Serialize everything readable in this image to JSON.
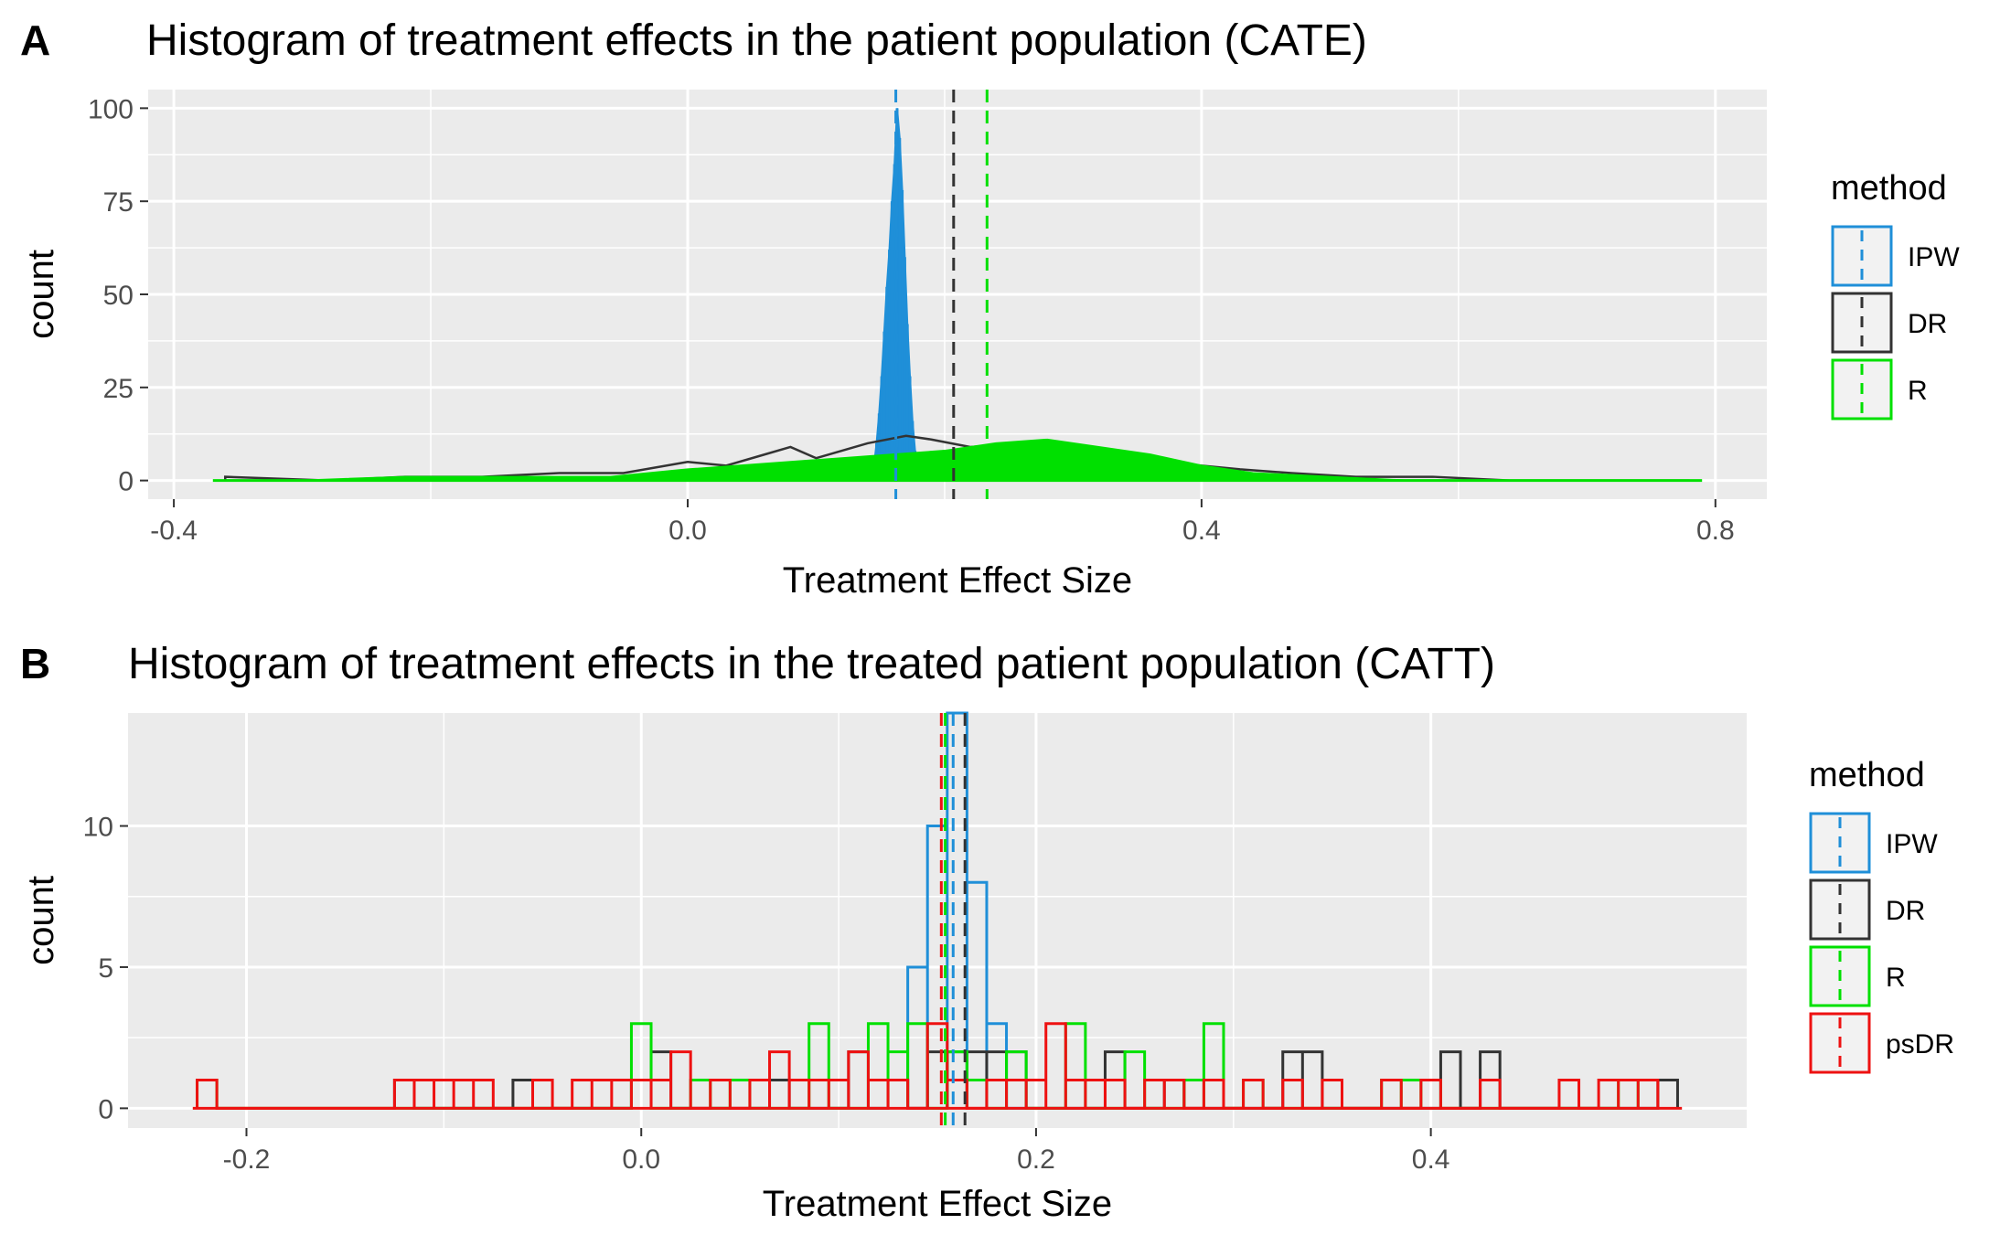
{
  "chart_data": [
    {
      "panel": "A",
      "type": "histogram",
      "title": "Histogram of treatment effects in the patient population (CATE)",
      "xlabel": "Treatment Effect Size",
      "ylabel": "count",
      "xlim": [
        -0.42,
        0.84
      ],
      "ylim": [
        -5,
        105
      ],
      "xticks": [
        -0.4,
        0.0,
        0.4,
        0.8
      ],
      "xtick_labels": [
        "-0.4",
        "0.0",
        "0.4",
        "0.8"
      ],
      "yticks": [
        0,
        25,
        50,
        75,
        100
      ],
      "ytick_labels": [
        "0",
        "25",
        "50",
        "75",
        "100"
      ],
      "grid": true,
      "legend": {
        "title": "method",
        "position": "right",
        "entries": [
          "IPW",
          "DR",
          "R"
        ]
      },
      "series": [
        {
          "name": "IPW",
          "color": "#1F8FD8",
          "filled": true,
          "bins": [
            [
              0.145,
              4
            ],
            [
              0.147,
              10
            ],
            [
              0.149,
              18
            ],
            [
              0.151,
              28
            ],
            [
              0.153,
              40
            ],
            [
              0.155,
              52
            ],
            [
              0.157,
              62
            ],
            [
              0.159,
              75
            ],
            [
              0.161,
              85
            ],
            [
              0.163,
              100
            ],
            [
              0.165,
              92
            ],
            [
              0.167,
              78
            ],
            [
              0.169,
              60
            ],
            [
              0.171,
              42
            ],
            [
              0.173,
              28
            ],
            [
              0.175,
              16
            ],
            [
              0.177,
              8
            ]
          ]
        },
        {
          "name": "DR",
          "color": "#333333",
          "filled": false,
          "bins": [
            [
              -0.36,
              1
            ],
            [
              -0.28,
              0
            ],
            [
              -0.22,
              1
            ],
            [
              -0.16,
              1
            ],
            [
              -0.1,
              2
            ],
            [
              -0.05,
              2
            ],
            [
              0.0,
              5
            ],
            [
              0.03,
              4
            ],
            [
              0.06,
              7
            ],
            [
              0.08,
              9
            ],
            [
              0.1,
              6
            ],
            [
              0.12,
              8
            ],
            [
              0.14,
              10
            ],
            [
              0.17,
              12
            ],
            [
              0.19,
              11
            ],
            [
              0.22,
              9
            ],
            [
              0.26,
              10
            ],
            [
              0.3,
              9
            ],
            [
              0.34,
              7
            ],
            [
              0.37,
              5
            ],
            [
              0.4,
              4
            ],
            [
              0.43,
              3
            ],
            [
              0.47,
              2
            ],
            [
              0.52,
              1
            ],
            [
              0.58,
              1
            ],
            [
              0.64,
              0
            ],
            [
              0.72,
              0
            ],
            [
              0.78,
              0
            ]
          ]
        },
        {
          "name": "R",
          "color": "#00E000",
          "filled": true,
          "bins": [
            [
              -0.36,
              0
            ],
            [
              -0.3,
              0
            ],
            [
              -0.22,
              1
            ],
            [
              -0.14,
              1
            ],
            [
              -0.06,
              1
            ],
            [
              0.0,
              3
            ],
            [
              0.04,
              4
            ],
            [
              0.08,
              5
            ],
            [
              0.12,
              6
            ],
            [
              0.16,
              7
            ],
            [
              0.2,
              8
            ],
            [
              0.24,
              10
            ],
            [
              0.28,
              11
            ],
            [
              0.32,
              9
            ],
            [
              0.36,
              7
            ],
            [
              0.4,
              4
            ],
            [
              0.44,
              2
            ],
            [
              0.5,
              1
            ],
            [
              0.56,
              0
            ],
            [
              0.64,
              0
            ],
            [
              0.72,
              0
            ],
            [
              0.78,
              0
            ]
          ]
        }
      ],
      "mean_lines": [
        {
          "name": "IPW",
          "color": "#1F8FD8",
          "x": 0.162
        },
        {
          "name": "DR",
          "color": "#333333",
          "x": 0.207
        },
        {
          "name": "R",
          "color": "#00E000",
          "x": 0.233
        }
      ]
    },
    {
      "panel": "B",
      "type": "histogram",
      "title": "Histogram of treatment effects in the treated patient population (CATT)",
      "xlabel": "Treatment Effect Size",
      "ylabel": "count",
      "xlim": [
        -0.26,
        0.56
      ],
      "ylim": [
        -0.7,
        14.0
      ],
      "xticks": [
        -0.2,
        0.0,
        0.2,
        0.4
      ],
      "xtick_labels": [
        "-0.2",
        "0.0",
        "0.2",
        "0.4"
      ],
      "yticks": [
        0,
        5,
        10
      ],
      "ytick_labels": [
        "0",
        "5",
        "10"
      ],
      "grid": true,
      "binwidth": 0.01,
      "legend": {
        "title": "method",
        "position": "right",
        "entries": [
          "IPW",
          "DR",
          "R",
          "psDR"
        ]
      },
      "series": [
        {
          "name": "IPW",
          "color": "#1F8FD8",
          "filled": false,
          "bins": [
            [
              0.14,
              5
            ],
            [
              0.15,
              10
            ],
            [
              0.16,
              14
            ],
            [
              0.17,
              8
            ],
            [
              0.18,
              3
            ],
            [
              0.19,
              0
            ]
          ]
        },
        {
          "name": "DR",
          "color": "#333333",
          "filled": false,
          "bins": [
            [
              -0.12,
              1
            ],
            [
              -0.06,
              1
            ],
            [
              0.0,
              1
            ],
            [
              0.01,
              2
            ],
            [
              0.07,
              1
            ],
            [
              0.11,
              2
            ],
            [
              0.13,
              1
            ],
            [
              0.15,
              2
            ],
            [
              0.16,
              2
            ],
            [
              0.17,
              2
            ],
            [
              0.18,
              2
            ],
            [
              0.19,
              2
            ],
            [
              0.24,
              2
            ],
            [
              0.27,
              1
            ],
            [
              0.33,
              2
            ],
            [
              0.34,
              2
            ],
            [
              0.41,
              2
            ],
            [
              0.43,
              2
            ],
            [
              0.52,
              1
            ]
          ]
        },
        {
          "name": "R",
          "color": "#00E000",
          "filled": false,
          "bins": [
            [
              -0.22,
              1
            ],
            [
              0.0,
              3
            ],
            [
              0.03,
              1
            ],
            [
              0.05,
              1
            ],
            [
              0.09,
              3
            ],
            [
              0.12,
              3
            ],
            [
              0.13,
              2
            ],
            [
              0.14,
              3
            ],
            [
              0.16,
              2
            ],
            [
              0.17,
              1
            ],
            [
              0.19,
              2
            ],
            [
              0.22,
              3
            ],
            [
              0.25,
              2
            ],
            [
              0.28,
              1
            ],
            [
              0.29,
              3
            ],
            [
              0.31,
              1
            ],
            [
              0.38,
              1
            ],
            [
              0.39,
              1
            ],
            [
              0.4,
              1
            ],
            [
              0.5,
              1
            ]
          ]
        },
        {
          "name": "psDR",
          "color": "#EE1111",
          "filled": false,
          "bins": [
            [
              -0.22,
              1
            ],
            [
              -0.12,
              1
            ],
            [
              -0.11,
              1
            ],
            [
              -0.1,
              1
            ],
            [
              -0.09,
              1
            ],
            [
              -0.08,
              1
            ],
            [
              -0.05,
              1
            ],
            [
              -0.03,
              1
            ],
            [
              -0.02,
              1
            ],
            [
              -0.01,
              1
            ],
            [
              0.0,
              1
            ],
            [
              0.01,
              1
            ],
            [
              0.02,
              2
            ],
            [
              0.04,
              1
            ],
            [
              0.06,
              1
            ],
            [
              0.07,
              2
            ],
            [
              0.08,
              1
            ],
            [
              0.09,
              1
            ],
            [
              0.1,
              1
            ],
            [
              0.11,
              2
            ],
            [
              0.12,
              1
            ],
            [
              0.13,
              1
            ],
            [
              0.15,
              3
            ],
            [
              0.16,
              1
            ],
            [
              0.18,
              1
            ],
            [
              0.19,
              1
            ],
            [
              0.2,
              1
            ],
            [
              0.21,
              3
            ],
            [
              0.22,
              1
            ],
            [
              0.23,
              1
            ],
            [
              0.24,
              1
            ],
            [
              0.26,
              1
            ],
            [
              0.27,
              1
            ],
            [
              0.29,
              1
            ],
            [
              0.31,
              1
            ],
            [
              0.33,
              1
            ],
            [
              0.35,
              1
            ],
            [
              0.38,
              1
            ],
            [
              0.4,
              1
            ],
            [
              0.43,
              1
            ],
            [
              0.47,
              1
            ],
            [
              0.49,
              1
            ],
            [
              0.5,
              1
            ],
            [
              0.51,
              1
            ]
          ]
        }
      ],
      "mean_lines": [
        {
          "name": "psDR",
          "color": "#EE1111",
          "x": 0.152
        },
        {
          "name": "R",
          "color": "#00E000",
          "x": 0.154
        },
        {
          "name": "IPW",
          "color": "#1F8FD8",
          "x": 0.158
        },
        {
          "name": "DR",
          "color": "#333333",
          "x": 0.164
        }
      ]
    }
  ],
  "panel_labels": [
    "A",
    "B"
  ],
  "palette": {
    "panel_bg": "#EBEBEB",
    "grid": "#FFFFFF",
    "axis_text": "#4D4D4D",
    "legend_key_bg": "#F2F2F2"
  }
}
